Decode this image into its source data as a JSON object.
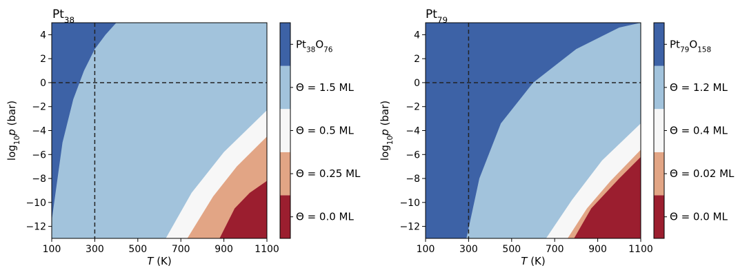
{
  "chart_data": [
    {
      "type": "heatmap",
      "title": "Pt38",
      "title_parts": {
        "base": "Pt",
        "sub": "38"
      },
      "xlabel": "T (K)",
      "ylabel": "log10p (bar)",
      "xlim": [
        100,
        1100
      ],
      "ylim": [
        -13,
        5
      ],
      "xticks": [
        100,
        300,
        500,
        700,
        900,
        1100
      ],
      "yticks": [
        -12,
        -10,
        -8,
        -6,
        -4,
        -2,
        0,
        2,
        4
      ],
      "reference_lines": {
        "x": 300,
        "y": 0,
        "style": "dashed"
      },
      "phases": [
        {
          "label": "Θ = 0.0 ML",
          "color": "#9b1e2f"
        },
        {
          "label": "Θ = 0.25 ML",
          "color": "#e2a585"
        },
        {
          "label": "Θ = 0.5 ML",
          "color": "#f7f7f7"
        },
        {
          "label": "Θ = 1.5 ML",
          "color": "#a2c3dc"
        },
        {
          "label": "Pt38O76",
          "parts": [
            "Pt",
            "38",
            "O",
            "76"
          ],
          "color": "#3d62a6"
        }
      ],
      "boundaries": [
        {
          "between": [
            "Θ = 0.0 ML",
            "Θ = 0.25 ML"
          ],
          "points": [
            [
              880,
              -13
            ],
            [
              950,
              -10.5
            ],
            [
              1020,
              -9.2
            ],
            [
              1100,
              -8.2
            ]
          ]
        },
        {
          "between": [
            "Θ = 0.25 ML",
            "Θ = 0.5 ML"
          ],
          "points": [
            [
              730,
              -13
            ],
            [
              850,
              -9.5
            ],
            [
              960,
              -7.0
            ],
            [
              1100,
              -4.5
            ]
          ]
        },
        {
          "between": [
            "Θ = 0.5 ML",
            "Θ = 1.5 ML"
          ],
          "points": [
            [
              630,
              -13
            ],
            [
              750,
              -9.2
            ],
            [
              900,
              -5.8
            ],
            [
              1100,
              -2.3
            ]
          ]
        },
        {
          "between": [
            "Θ = 1.5 ML",
            "Pt38O76"
          ],
          "points": [
            [
              100,
              -11.5
            ],
            [
              150,
              -5
            ],
            [
              200,
              -1.4
            ],
            [
              250,
              1
            ],
            [
              300,
              2.8
            ],
            [
              350,
              4
            ],
            [
              400,
              5
            ]
          ]
        }
      ]
    },
    {
      "type": "heatmap",
      "title": "Pt79",
      "title_parts": {
        "base": "Pt",
        "sub": "79"
      },
      "xlabel": "T (K)",
      "ylabel": "log10p (bar)",
      "xlim": [
        100,
        1100
      ],
      "ylim": [
        -13,
        5
      ],
      "xticks": [
        100,
        300,
        500,
        700,
        900,
        1100
      ],
      "yticks": [
        -12,
        -10,
        -8,
        -6,
        -4,
        -2,
        0,
        2,
        4
      ],
      "reference_lines": {
        "x": 300,
        "y": 0,
        "style": "dashed"
      },
      "phases": [
        {
          "label": "Θ = 0.0 ML",
          "color": "#9b1e2f"
        },
        {
          "label": "Θ = 0.02 ML",
          "color": "#e2a585"
        },
        {
          "label": "Θ = 0.4 ML",
          "color": "#f7f7f7"
        },
        {
          "label": "Θ = 1.2 ML",
          "color": "#a2c3dc"
        },
        {
          "label": "Pt79O158",
          "parts": [
            "Pt",
            "79",
            "O",
            "158"
          ],
          "color": "#3d62a6"
        }
      ],
      "boundaries": [
        {
          "between": [
            "Θ = 0.0 ML",
            "Θ = 0.02 ML"
          ],
          "points": [
            [
              790,
              -13
            ],
            [
              870,
              -10.5
            ],
            [
              1000,
              -8.0
            ],
            [
              1100,
              -6.2
            ]
          ]
        },
        {
          "between": [
            "Θ = 0.02 ML",
            "Θ = 0.4 ML"
          ],
          "points": [
            [
              760,
              -13
            ],
            [
              850,
              -10.5
            ],
            [
              960,
              -8.2
            ],
            [
              1100,
              -5.6
            ]
          ]
        },
        {
          "between": [
            "Θ = 0.4 ML",
            "Θ = 1.2 ML"
          ],
          "points": [
            [
              660,
              -13
            ],
            [
              780,
              -9.8
            ],
            [
              920,
              -6.5
            ],
            [
              1100,
              -3.4
            ]
          ]
        },
        {
          "between": [
            "Θ = 1.2 ML",
            "Pt79O158"
          ],
          "points": [
            [
              290,
              -13
            ],
            [
              350,
              -8
            ],
            [
              450,
              -3.4
            ],
            [
              600,
              0
            ],
            [
              800,
              2.8
            ],
            [
              1000,
              4.6
            ],
            [
              1100,
              5
            ]
          ]
        }
      ]
    }
  ]
}
